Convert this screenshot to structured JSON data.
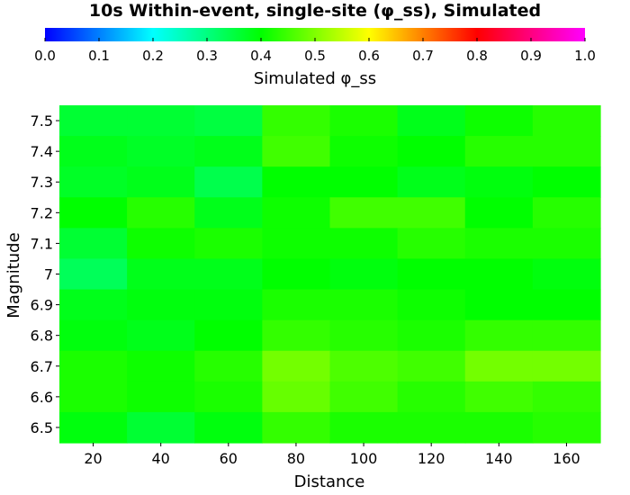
{
  "chart_data": {
    "type": "heatmap",
    "title": "10s Within-event, single-site (φ_ss), Simulated",
    "xlabel": "Distance",
    "ylabel": "Magnitude",
    "colorbar": {
      "label": "Simulated φ_ss",
      "range": [
        0.0,
        1.0
      ],
      "ticks": [
        "0.0",
        "0.1",
        "0.2",
        "0.3",
        "0.4",
        "0.5",
        "0.6",
        "0.7",
        "0.8",
        "0.9",
        "1.0"
      ],
      "stops": [
        "#0000ff",
        "#00ffff",
        "#00ff00",
        "#ffff00",
        "#ff0000",
        "#ff00ff"
      ]
    },
    "x": [
      20,
      40,
      60,
      80,
      100,
      120,
      140,
      160
    ],
    "x_ticks": [
      "20",
      "40",
      "60",
      "80",
      "100",
      "120",
      "140",
      "160"
    ],
    "y": [
      7.5,
      7.4,
      7.3,
      7.2,
      7.1,
      7,
      6.9,
      6.8,
      6.7,
      6.6,
      6.5
    ],
    "y_ticks": [
      "7.5",
      "7.4",
      "7.3",
      "7.2",
      "7.1",
      "7",
      "6.9",
      "6.8",
      "6.7",
      "6.6",
      "6.5"
    ],
    "values": [
      [
        0.36,
        0.36,
        0.35,
        0.44,
        0.42,
        0.38,
        0.41,
        0.43
      ],
      [
        0.38,
        0.37,
        0.38,
        0.45,
        0.41,
        0.4,
        0.43,
        0.43
      ],
      [
        0.37,
        0.38,
        0.34,
        0.4,
        0.4,
        0.38,
        0.39,
        0.4
      ],
      [
        0.4,
        0.43,
        0.38,
        0.41,
        0.45,
        0.45,
        0.4,
        0.43
      ],
      [
        0.36,
        0.41,
        0.42,
        0.41,
        0.41,
        0.43,
        0.42,
        0.42
      ],
      [
        0.33,
        0.38,
        0.38,
        0.4,
        0.39,
        0.4,
        0.4,
        0.39
      ],
      [
        0.38,
        0.39,
        0.39,
        0.42,
        0.42,
        0.41,
        0.4,
        0.4
      ],
      [
        0.39,
        0.38,
        0.4,
        0.44,
        0.43,
        0.42,
        0.44,
        0.44
      ],
      [
        0.42,
        0.41,
        0.43,
        0.49,
        0.46,
        0.45,
        0.49,
        0.49
      ],
      [
        0.42,
        0.41,
        0.42,
        0.48,
        0.45,
        0.43,
        0.45,
        0.44
      ],
      [
        0.39,
        0.36,
        0.39,
        0.44,
        0.42,
        0.42,
        0.42,
        0.43
      ]
    ]
  }
}
